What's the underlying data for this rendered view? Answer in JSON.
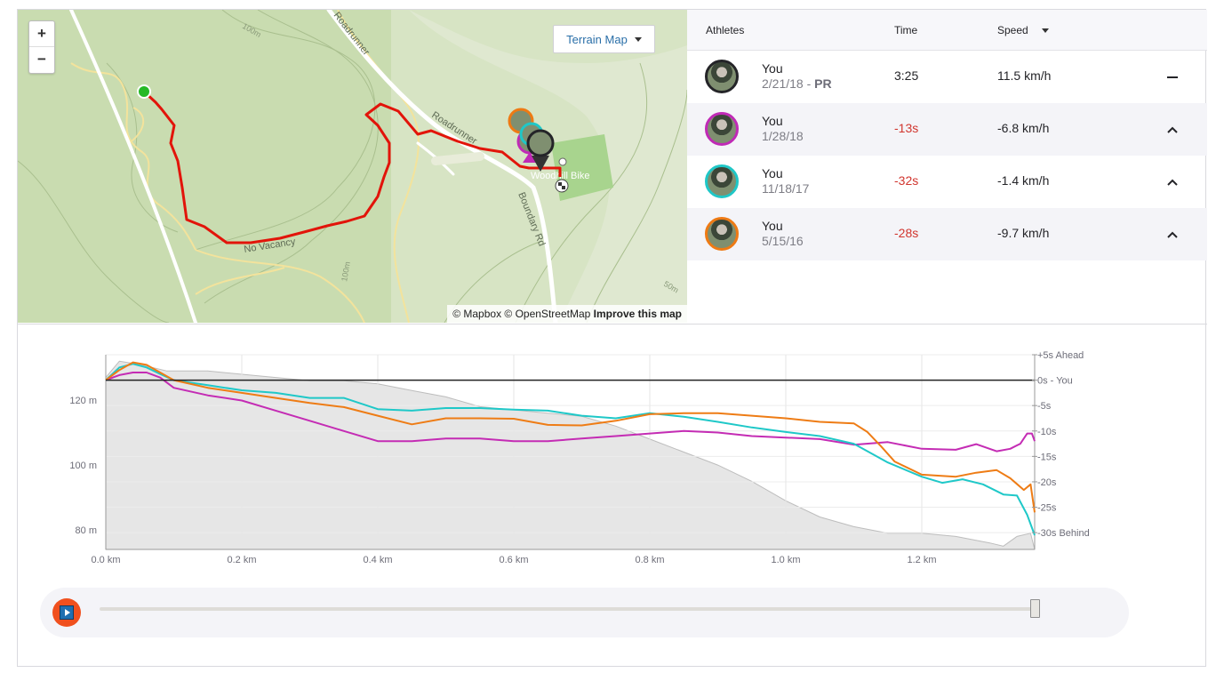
{
  "map": {
    "zoom_in": "+",
    "zoom_out": "−",
    "terrain_button": "Terrain Map",
    "attribution": "© Mapbox © OpenStreetMap",
    "improve_link": "Improve this map",
    "labels": {
      "roadrunner_top": "Roadrunner",
      "roadrunner_mid": "Roadrunner",
      "boundary_rd": "Boundary Rd",
      "no_vacancy": "No Vacancy",
      "woodhill": "Woodhill Bike",
      "c100_top": "100m",
      "c100_bottom": "100m",
      "c50": "50m"
    },
    "colors": {
      "route": "#e2140a",
      "start": "#26b926"
    }
  },
  "leaderboard": {
    "headers": {
      "athletes": "Athletes",
      "time": "Time",
      "speed": "Speed"
    },
    "rows": [
      {
        "name": "You",
        "date": "2/21/18",
        "sep": " - ",
        "pr": "PR",
        "time": "3:25",
        "speed": "11.5 km/h",
        "ring": "#242428",
        "icon": "dash-icon"
      },
      {
        "name": "You",
        "date": "1/28/18",
        "time": "-13s",
        "speed": "-6.8 km/h",
        "ring": "#c02ab6",
        "icon": "chevron-up-icon"
      },
      {
        "name": "You",
        "date": "11/18/17",
        "time": "-32s",
        "speed": "-1.4 km/h",
        "ring": "#1fc7c7",
        "icon": "chevron-up-icon"
      },
      {
        "name": "You",
        "date": "5/15/16",
        "time": "-28s",
        "speed": "-9.7 km/h",
        "ring": "#ee7a14",
        "icon": "chevron-up-icon"
      }
    ]
  },
  "chart_data": {
    "type": "line",
    "x_unit": "km",
    "x_ticks": [
      "0.0 km",
      "0.2 km",
      "0.4 km",
      "0.6 km",
      "0.8 km",
      "1.0 km",
      "1.2 km"
    ],
    "x_tick_values": [
      0,
      0.2,
      0.4,
      0.6,
      0.8,
      1.0,
      1.2
    ],
    "xlim": [
      0,
      1.366
    ],
    "left_axis": {
      "label_ticks": [
        "120 m",
        "100 m",
        "80 m"
      ],
      "tick_values": [
        120,
        100,
        80
      ],
      "ylim": [
        74,
        134
      ]
    },
    "right_axis": {
      "label_ticks": [
        "+5s Ahead",
        "0s - You",
        "-5s",
        "-10s",
        "-15s",
        "-20s",
        "-25s",
        "-30s Behind"
      ],
      "tick_values": [
        5,
        0,
        -5,
        -10,
        -15,
        -20,
        -25,
        -30
      ],
      "ylim": [
        -33.3,
        5
      ]
    },
    "elevation": {
      "name": "Elevation",
      "color": "#e6e6e6",
      "x": [
        0,
        0.02,
        0.05,
        0.09,
        0.15,
        0.25,
        0.3,
        0.35,
        0.4,
        0.45,
        0.5,
        0.55,
        0.6,
        0.65,
        0.7,
        0.75,
        0.8,
        0.85,
        0.9,
        0.95,
        1.0,
        1.05,
        1.1,
        1.15,
        1.2,
        1.25,
        1.3,
        1.32,
        1.34,
        1.36,
        1.366
      ],
      "y": [
        127,
        132,
        131,
        129,
        129,
        127,
        126,
        126,
        125,
        123,
        121,
        118,
        117,
        116,
        115,
        112,
        108,
        104,
        100,
        95,
        89,
        84,
        81,
        79,
        79,
        78,
        76,
        75,
        78,
        79,
        74
      ]
    },
    "series": [
      {
        "name": "1/28/18",
        "color": "#c42cb4",
        "x": [
          0,
          0.02,
          0.04,
          0.06,
          0.08,
          0.1,
          0.15,
          0.2,
          0.25,
          0.3,
          0.35,
          0.4,
          0.45,
          0.5,
          0.55,
          0.6,
          0.65,
          0.7,
          0.75,
          0.8,
          0.85,
          0.9,
          0.95,
          1.0,
          1.05,
          1.1,
          1.15,
          1.2,
          1.25,
          1.28,
          1.31,
          1.33,
          1.345,
          1.355,
          1.362,
          1.366
        ],
        "y": [
          0,
          1,
          1.5,
          1.5,
          0.5,
          -1.5,
          -3,
          -4,
          -6,
          -8,
          -10,
          -12,
          -12,
          -11.5,
          -11.5,
          -12,
          -12,
          -11.5,
          -11,
          -10.5,
          -10,
          -10.3,
          -11,
          -11.3,
          -11.6,
          -12.7,
          -12.2,
          -13.5,
          -13.7,
          -12.6,
          -14,
          -13.5,
          -12.5,
          -10.5,
          -10.5,
          -12
        ]
      },
      {
        "name": "11/18/17",
        "color": "#1fc8c8",
        "x": [
          0,
          0.02,
          0.04,
          0.06,
          0.08,
          0.1,
          0.15,
          0.2,
          0.25,
          0.3,
          0.35,
          0.4,
          0.45,
          0.5,
          0.55,
          0.6,
          0.65,
          0.7,
          0.75,
          0.8,
          0.85,
          0.9,
          0.95,
          1.0,
          1.05,
          1.1,
          1.15,
          1.2,
          1.23,
          1.26,
          1.29,
          1.32,
          1.34,
          1.355,
          1.366
        ],
        "y": [
          0,
          2.5,
          3.2,
          2.5,
          1.2,
          0,
          -1,
          -2,
          -2.5,
          -3.5,
          -3.5,
          -5.7,
          -6,
          -5.5,
          -5.5,
          -5.8,
          -6,
          -7,
          -7.5,
          -6.5,
          -7.2,
          -8.2,
          -9.3,
          -10.2,
          -11,
          -12.5,
          -16.2,
          -19,
          -20.2,
          -19.5,
          -20.5,
          -22.5,
          -22.7,
          -26.5,
          -30.5
        ]
      },
      {
        "name": "5/15/16",
        "color": "#ee7c15",
        "x": [
          0,
          0.02,
          0.04,
          0.06,
          0.08,
          0.1,
          0.15,
          0.2,
          0.25,
          0.3,
          0.35,
          0.4,
          0.45,
          0.5,
          0.55,
          0.6,
          0.65,
          0.7,
          0.75,
          0.8,
          0.85,
          0.9,
          0.95,
          1.0,
          1.05,
          1.1,
          1.12,
          1.14,
          1.16,
          1.2,
          1.25,
          1.28,
          1.31,
          1.33,
          1.35,
          1.36,
          1.366
        ],
        "y": [
          0,
          2,
          3.5,
          3,
          1.5,
          0,
          -1.5,
          -2.5,
          -3.5,
          -4.5,
          -5.3,
          -7,
          -8.7,
          -7.5,
          -7.5,
          -7.6,
          -8.8,
          -8.9,
          -8,
          -6.7,
          -6.5,
          -6.5,
          -7,
          -7.5,
          -8.2,
          -8.5,
          -10.2,
          -13,
          -16,
          -18.6,
          -19,
          -18.2,
          -17.7,
          -19.3,
          -21.6,
          -20.5,
          -26
        ]
      }
    ],
    "baseline": {
      "name": "0s - You",
      "value": 0,
      "color": "#222222"
    }
  },
  "player": {
    "play_icon": "play-icon",
    "progress": 1.0
  }
}
